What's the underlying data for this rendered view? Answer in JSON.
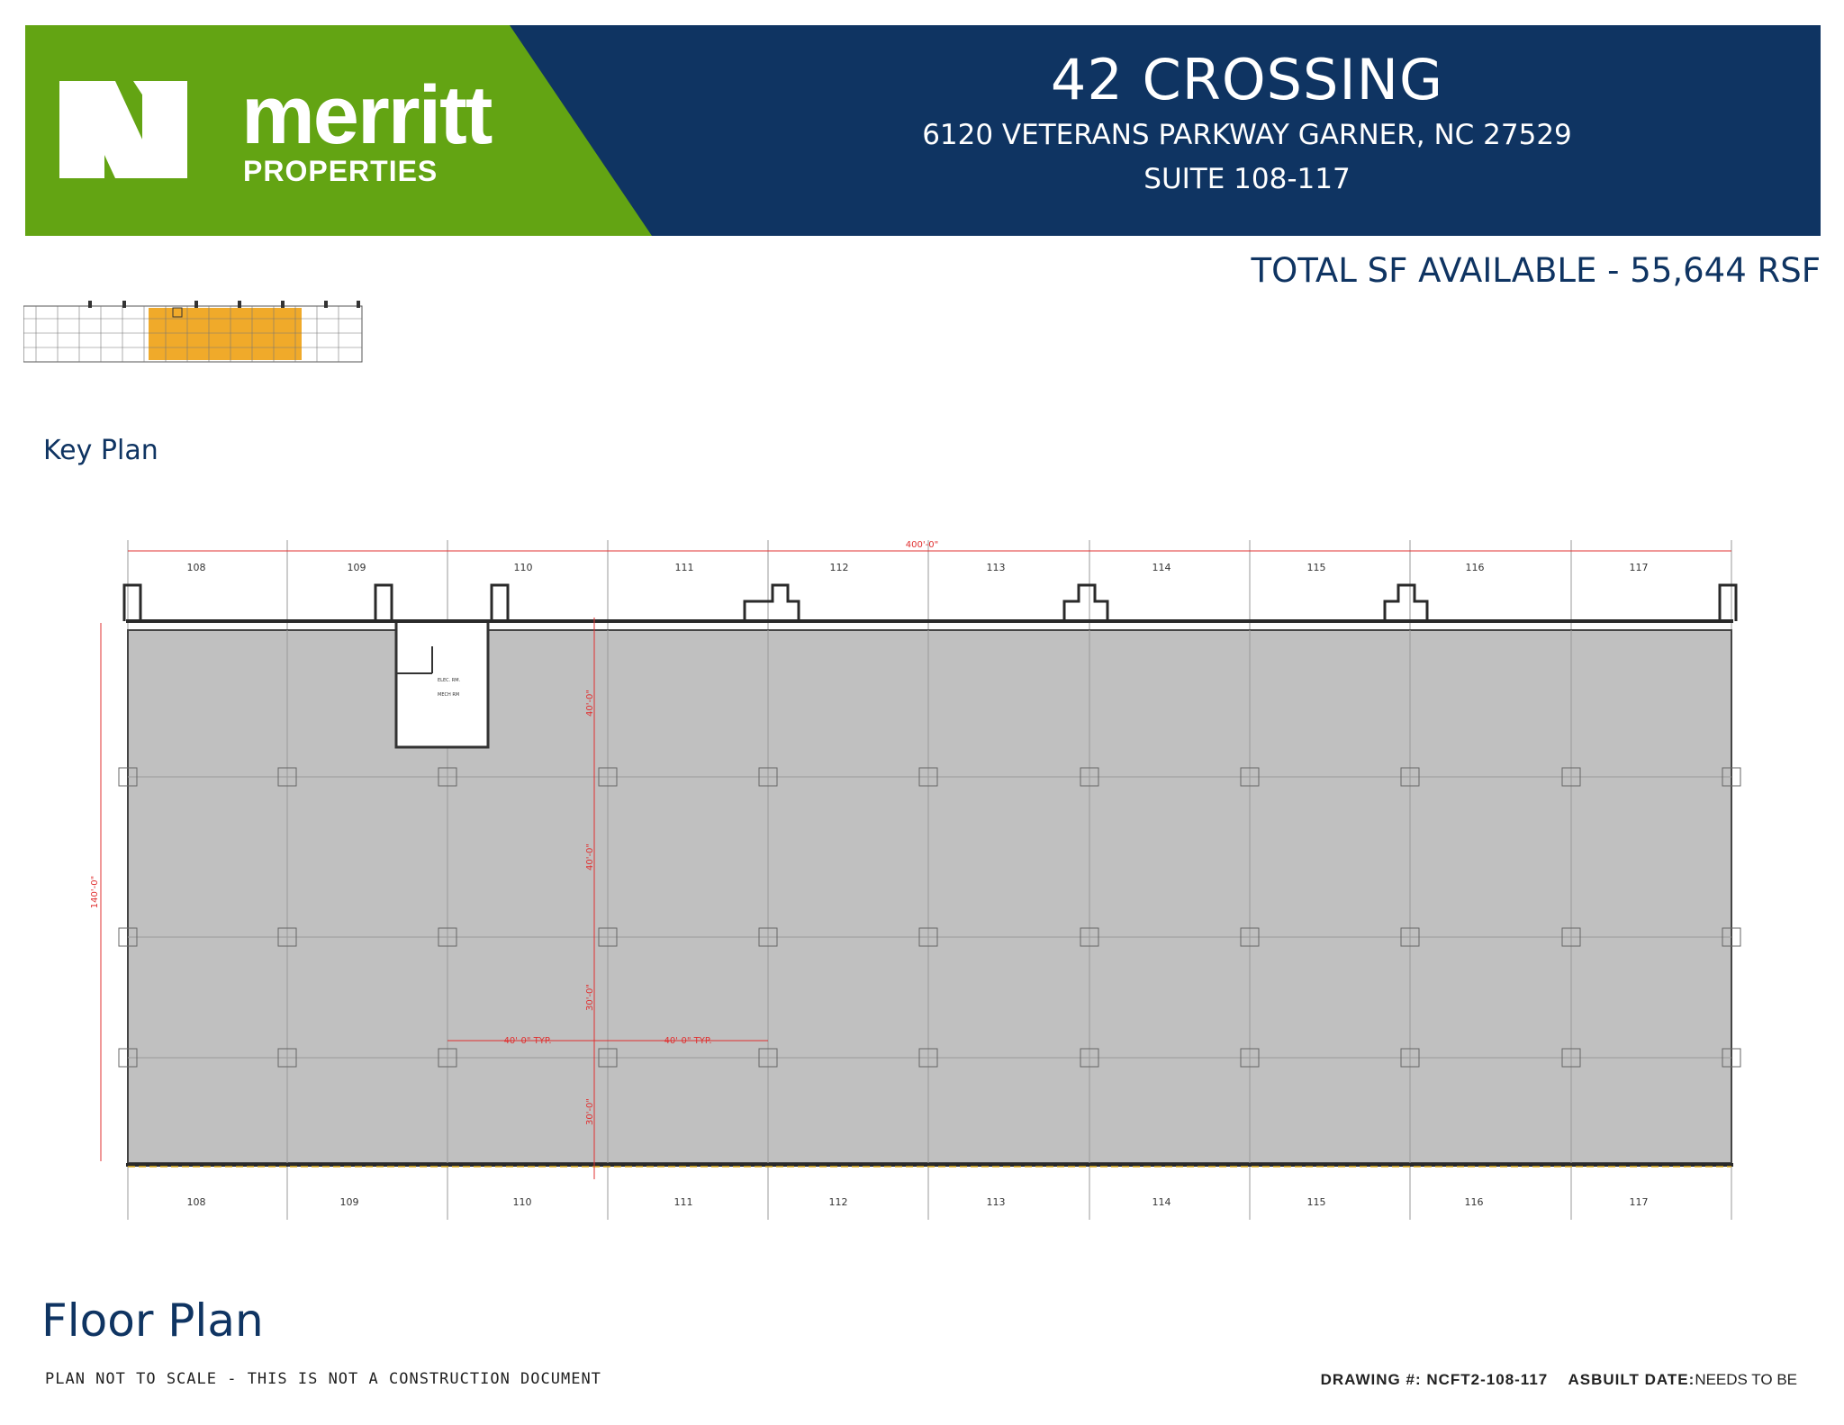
{
  "brand": {
    "name": "merritt",
    "subtitle": "PROPERTIES",
    "green": "#63a413",
    "navy": "#0f3462"
  },
  "project": {
    "title": "42 CROSSING",
    "address": "6120 VETERANS PARKWAY GARNER, NC 27529",
    "suite": "SUITE 108-117"
  },
  "availability": "TOTAL SF AVAILABLE - 55,644 RSF",
  "key_plan": {
    "title": "Key Plan",
    "highlight_color": "#f0aa2a"
  },
  "floor_plan": {
    "title": "Floor Plan",
    "suites": [
      "108",
      "109",
      "110",
      "111",
      "112",
      "113",
      "114",
      "115",
      "116",
      "117"
    ],
    "dimensions": {
      "overall_width": "400'-0\"",
      "overall_depth": "140'-0\"",
      "bay_a": "40'-0\"",
      "bay_b": "40'-0\"",
      "bay_c": "30'-0\"",
      "bay_d": "30'-0\"",
      "typ_1": "40'-0\" TYP.",
      "typ_2": "40'-0\" TYP."
    },
    "room_labels": [
      "ELEC. RM.",
      "MECH RM"
    ],
    "fill_color": "#c0c0c0",
    "dimension_color": "#e03030"
  },
  "footer": {
    "disclaimer": "PLAN NOT TO SCALE - THIS IS NOT A CONSTRUCTION DOCUMENT",
    "drawing_label": "DRAWING #:",
    "drawing_number": "NCFT2-108-117",
    "asbuilt_label": "ASBUILT DATE:",
    "asbuilt_value": "NEEDS TO BE"
  }
}
